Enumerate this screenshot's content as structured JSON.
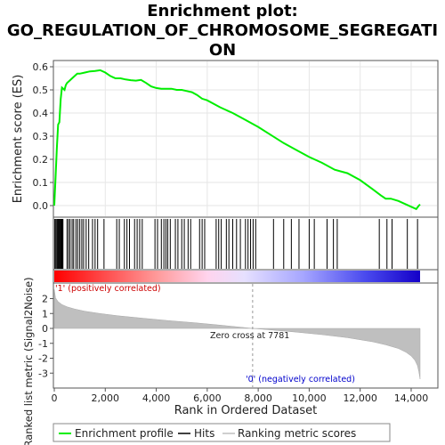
{
  "chart_data": {
    "type": "line",
    "title_lines": [
      "Enrichment plot:",
      "GO_REGULATION_OF_CHROMOSOME_SEGREGATI",
      "ON"
    ],
    "ylabel_top": "Enrichment score (ES)",
    "ylabel_bottom": "Ranked list metric (Signal2Noise)",
    "xlabel": "Rank in Ordered Dataset",
    "xlim": [
      0,
      14500
    ],
    "x_ticks": [
      0,
      2000,
      4000,
      6000,
      8000,
      10000,
      12000,
      14000
    ],
    "x_tick_labels": [
      "0",
      "2,000",
      "4,000",
      "6,000",
      "8,000",
      "10,000",
      "12,000",
      "14,000"
    ],
    "es_ylim": [
      -0.03,
      0.62
    ],
    "es_ticks": [
      0.0,
      0.1,
      0.2,
      0.3,
      0.4,
      0.5,
      0.6
    ],
    "es_tick_labels": [
      "0.0",
      "0.1",
      "0.2",
      "0.3",
      "0.4",
      "0.5",
      "0.6"
    ],
    "metric_ylim": [
      -3.6,
      2.8
    ],
    "metric_ticks": [
      2,
      1,
      0,
      -1,
      -2,
      -3
    ],
    "metric_tick_labels": [
      "2",
      "1",
      "0",
      "-1",
      "-2",
      "-3"
    ],
    "enrichment_profile": {
      "x": [
        0,
        50,
        100,
        150,
        200,
        250,
        300,
        400,
        450,
        500,
        600,
        700,
        800,
        900,
        1000,
        1200,
        1400,
        1600,
        1800,
        2000,
        2200,
        2400,
        2600,
        2800,
        3000,
        3200,
        3400,
        3600,
        3800,
        4000,
        4200,
        4400,
        4600,
        4800,
        5000,
        5200,
        5400,
        5600,
        5800,
        6000,
        6500,
        7000,
        7500,
        8000,
        8500,
        9000,
        9500,
        10000,
        10500,
        11000,
        11500,
        12000,
        12500,
        12800,
        13000,
        13200,
        13500,
        13800,
        14000,
        14200,
        14300,
        14350
      ],
      "y": [
        0.0,
        0.12,
        0.25,
        0.35,
        0.36,
        0.46,
        0.51,
        0.5,
        0.52,
        0.53,
        0.54,
        0.55,
        0.56,
        0.57,
        0.57,
        0.575,
        0.58,
        0.582,
        0.585,
        0.575,
        0.56,
        0.55,
        0.55,
        0.545,
        0.542,
        0.54,
        0.543,
        0.53,
        0.515,
        0.508,
        0.505,
        0.505,
        0.505,
        0.5,
        0.5,
        0.495,
        0.49,
        0.478,
        0.462,
        0.455,
        0.425,
        0.4,
        0.37,
        0.34,
        0.305,
        0.27,
        0.24,
        0.21,
        0.185,
        0.155,
        0.14,
        0.11,
        0.07,
        0.045,
        0.03,
        0.03,
        0.02,
        0.005,
        -0.005,
        -0.015,
        0.0,
        0.005
      ]
    },
    "hits": [
      20,
      60,
      100,
      130,
      160,
      190,
      220,
      250,
      280,
      310,
      340,
      500,
      560,
      620,
      700,
      760,
      850,
      920,
      1000,
      1080,
      1150,
      1250,
      1350,
      1500,
      1600,
      1700,
      1950,
      2450,
      2550,
      2750,
      2850,
      2950,
      3150,
      3250,
      3350,
      3450,
      3950,
      4050,
      4200,
      4300,
      4380,
      4450,
      4550,
      4750,
      4850,
      5000,
      5100,
      5250,
      5350,
      5700,
      5800,
      5900,
      6350,
      6450,
      6550,
      6750,
      6850,
      7000,
      7150,
      7300,
      7500,
      7600,
      7700,
      7800,
      7900,
      8600,
      9000,
      9300,
      9600,
      10000,
      10200,
      10700,
      10950,
      11100,
      12750,
      13050,
      13250,
      13850,
      14250
    ],
    "ranked_metric": {
      "x": [
        0,
        50,
        150,
        300,
        500,
        800,
        1200,
        1800,
        2500,
        3500,
        4500,
        5500,
        6500,
        7200,
        7781,
        8500,
        9500,
        10500,
        11500,
        12500,
        13000,
        13500,
        13800,
        14000,
        14150,
        14250,
        14300,
        14350
      ],
      "y": [
        2.6,
        2.05,
        1.8,
        1.6,
        1.45,
        1.3,
        1.15,
        1.0,
        0.85,
        0.68,
        0.52,
        0.38,
        0.22,
        0.1,
        0.0,
        -0.1,
        -0.25,
        -0.42,
        -0.62,
        -0.9,
        -1.1,
        -1.35,
        -1.6,
        -1.85,
        -2.15,
        -2.5,
        -2.9,
        -3.4
      ]
    },
    "annotations": {
      "positive": "'1' (positively correlated)",
      "negative": "'0' (negatively correlated)",
      "zero_cross": "Zero cross at 7781"
    },
    "zero_cross_rank": 7781,
    "legend": {
      "position": "bottom",
      "entries": [
        "Enrichment profile",
        "Hits",
        "Ranking metric scores"
      ]
    },
    "colors": {
      "enrichment": "#00ee00",
      "hits": "#000000",
      "metric_fill": "#bfbfbf",
      "positive_text": "#cc0000",
      "negative_text": "#0000cc",
      "grid": "#e6e6e6"
    }
  }
}
